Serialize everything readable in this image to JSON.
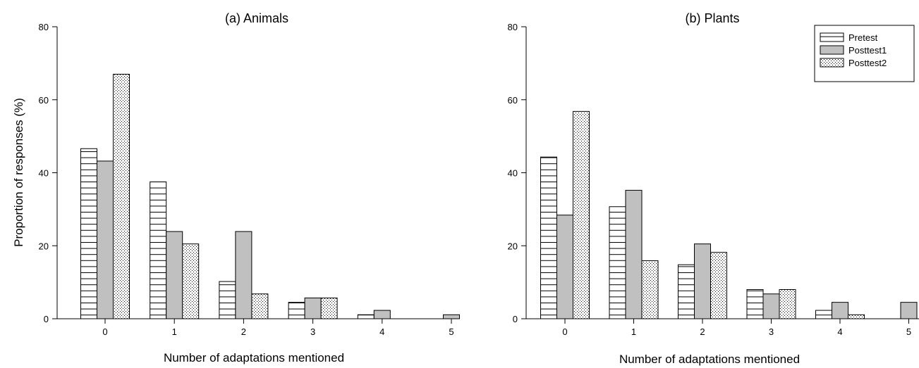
{
  "chart_data": [
    {
      "type": "bar",
      "title": "(a) Animals",
      "xlabel": "Number of adaptations mentioned",
      "ylabel": "Proportion of responses (%)",
      "ylim": [
        0,
        80
      ],
      "yticks": [
        0,
        20,
        40,
        60,
        80
      ],
      "categories": [
        "0",
        "1",
        "2",
        "3",
        "4",
        "5"
      ],
      "series": [
        {
          "name": "Pretest",
          "pattern": "horizontal-lines",
          "values": [
            46.6,
            37.5,
            10.2,
            4.5,
            1.1,
            0
          ]
        },
        {
          "name": "Posttest1",
          "pattern": "gray",
          "values": [
            43.2,
            23.9,
            23.9,
            5.7,
            2.3,
            1.1
          ]
        },
        {
          "name": "Posttest2",
          "pattern": "dots",
          "values": [
            67.0,
            20.5,
            6.8,
            5.7,
            0,
            0
          ]
        }
      ],
      "legend": "none",
      "grid": false
    },
    {
      "type": "bar",
      "title": "(b) Plants",
      "xlabel": "Number of adaptations mentioned",
      "ylabel": "",
      "ylim": [
        0,
        80
      ],
      "yticks": [
        0,
        20,
        40,
        60,
        80
      ],
      "categories": [
        "0",
        "1",
        "2",
        "3",
        "4",
        "5"
      ],
      "series": [
        {
          "name": "Pretest",
          "pattern": "horizontal-lines",
          "values": [
            44.3,
            30.7,
            14.8,
            8.0,
            2.3,
            0
          ]
        },
        {
          "name": "Posttest1",
          "pattern": "gray",
          "values": [
            28.4,
            35.2,
            20.5,
            6.8,
            4.5,
            4.5
          ]
        },
        {
          "name": "Posttest2",
          "pattern": "dots",
          "values": [
            56.8,
            15.9,
            18.2,
            8.0,
            1.1,
            0
          ]
        }
      ],
      "legend": "top-right",
      "grid": false
    }
  ],
  "colors": {
    "gray_fill": "#c0c0c0",
    "stroke": "#000000",
    "background": "#ffffff"
  }
}
